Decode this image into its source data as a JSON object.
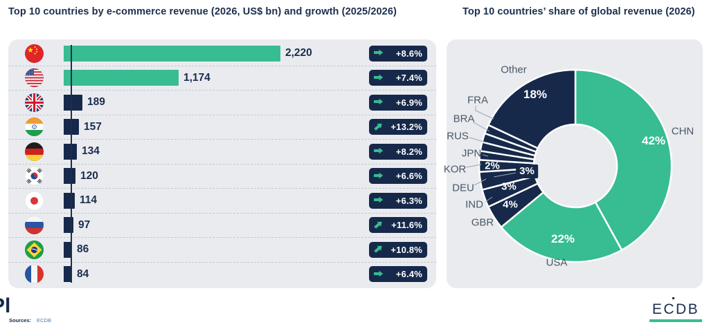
{
  "colors": {
    "green": "#38bc92",
    "navy": "#17294a",
    "panel_bg": "#e9ebef",
    "label_gray": "#4b5766"
  },
  "chart_data": [
    {
      "type": "bar",
      "orientation": "horizontal",
      "title": "Top 10 countries by e-commerce revenue (2026, US$ bn) and growth (2025/2026)",
      "unit": "US$ bn",
      "xmax": 2220,
      "rows": [
        {
          "code": "CHN",
          "country": "China",
          "value": 2220,
          "value_label": "2,220",
          "growth": "+8.6%",
          "trend": "flat",
          "color": "#38bc92"
        },
        {
          "code": "USA",
          "country": "United States",
          "value": 1174,
          "value_label": "1,174",
          "growth": "+7.4%",
          "trend": "flat",
          "color": "#38bc92"
        },
        {
          "code": "GBR",
          "country": "United Kingdom",
          "value": 189,
          "value_label": "189",
          "growth": "+6.9%",
          "trend": "flat",
          "color": "#17294a"
        },
        {
          "code": "IND",
          "country": "India",
          "value": 157,
          "value_label": "157",
          "growth": "+13.2%",
          "trend": "up",
          "color": "#17294a"
        },
        {
          "code": "DEU",
          "country": "Germany",
          "value": 134,
          "value_label": "134",
          "growth": "+8.2%",
          "trend": "flat",
          "color": "#17294a"
        },
        {
          "code": "KOR",
          "country": "South Korea",
          "value": 120,
          "value_label": "120",
          "growth": "+6.6%",
          "trend": "flat",
          "color": "#17294a"
        },
        {
          "code": "JPN",
          "country": "Japan",
          "value": 114,
          "value_label": "114",
          "growth": "+6.3%",
          "trend": "flat",
          "color": "#17294a"
        },
        {
          "code": "RUS",
          "country": "Russia",
          "value": 97,
          "value_label": "97",
          "growth": "+11.6%",
          "trend": "up",
          "color": "#17294a"
        },
        {
          "code": "BRA",
          "country": "Brazil",
          "value": 86,
          "value_label": "86",
          "growth": "+10.8%",
          "trend": "up",
          "color": "#17294a"
        },
        {
          "code": "FRA",
          "country": "France",
          "value": 84,
          "value_label": "84",
          "growth": "+6.4%",
          "trend": "flat",
          "color": "#17294a"
        }
      ]
    },
    {
      "type": "donut",
      "title": "Top 10 countries’ share of global revenue (2026)",
      "slices": [
        {
          "code": "CHN",
          "label": "CHN",
          "pct_label": "42%",
          "weight": 42,
          "color": "#38bc92"
        },
        {
          "code": "USA",
          "label": "USA",
          "pct_label": "22%",
          "weight": 22,
          "color": "#38bc92"
        },
        {
          "code": "GBR",
          "label": "GBR",
          "pct_label": "4%",
          "weight": 4,
          "color": "#17294a"
        },
        {
          "code": "IND",
          "label": "IND",
          "pct_label": "3%",
          "weight": 3,
          "color": "#17294a"
        },
        {
          "code": "DEU",
          "label": "DEU",
          "pct_label": "3%",
          "weight": 3,
          "color": "#17294a"
        },
        {
          "code": "KOR",
          "label": "KOR",
          "pct_label": "2%",
          "weight": 2,
          "color": "#17294a"
        },
        {
          "code": "JPN",
          "label": "JPN",
          "pct_label": "",
          "weight": 1.5,
          "color": "#17294a"
        },
        {
          "code": "RUS",
          "label": "RUS",
          "pct_label": "",
          "weight": 1.5,
          "color": "#17294a"
        },
        {
          "code": "BRA",
          "label": "BRA",
          "pct_label": "",
          "weight": 1.5,
          "color": "#17294a"
        },
        {
          "code": "FRA",
          "label": "FRA",
          "pct_label": "",
          "weight": 1.5,
          "color": "#17294a"
        },
        {
          "code": "OTHER",
          "label": "Other",
          "pct_label": "18%",
          "weight": 18,
          "color": "#17294a"
        }
      ]
    }
  ],
  "footer": {
    "partial_logo": "Pl",
    "sources_label": "Sources:",
    "sources_value": "ECDB",
    "brand": "ECDB"
  }
}
